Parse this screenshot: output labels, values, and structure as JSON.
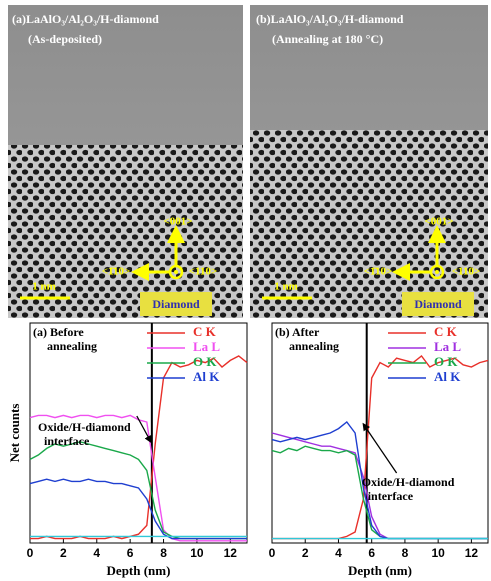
{
  "images": [
    {
      "title": "(a)LaAlO₃/Al₂O₃/H-diamond",
      "subtitle": "(As-deposited)",
      "dir_up": "<001>",
      "dir_left": "<1̄10>",
      "dir_right": "<110>",
      "scale": "1 nm",
      "region": "Diamond"
    },
    {
      "title": "(b)LaAlO₃/Al₂O₃/H-diamond",
      "subtitle": "(Annealing at 180 °C)",
      "dir_up": "<001>",
      "dir_left": "<1̄10>",
      "dir_right": "<110>",
      "scale": "1 nm",
      "region": "Diamond"
    }
  ],
  "chart_data": [
    {
      "type": "line",
      "panel_label": [
        "(a) Before",
        "annealing"
      ],
      "annotation": [
        "Oxide/H-diamond",
        "interface"
      ],
      "xlabel": "Depth (nm)",
      "ylabel": "Net counts",
      "xlim": [
        0,
        13
      ],
      "xticks": [
        0,
        2,
        4,
        6,
        8,
        10,
        12
      ],
      "ylim": [
        0,
        100
      ],
      "vline": 7.3,
      "legend": "upper right",
      "x": [
        0,
        0.5,
        1,
        1.5,
        2,
        2.5,
        3,
        3.5,
        4,
        4.5,
        5,
        5.5,
        6,
        6.5,
        7,
        7.5,
        8,
        8.5,
        9,
        9.5,
        10,
        10.5,
        11,
        11.5,
        12,
        12.5,
        13
      ],
      "series": [
        {
          "name": "C K",
          "color": "#e8302a",
          "values": [
            2,
            2,
            3,
            2,
            2,
            2,
            3,
            2,
            2,
            2,
            3,
            2,
            3,
            4,
            8,
            45,
            75,
            82,
            80,
            81,
            83,
            82,
            84,
            80,
            83,
            85,
            82
          ]
        },
        {
          "name": "La L",
          "color": "#f050f0",
          "values": [
            57,
            58,
            58,
            57,
            58,
            57,
            58,
            58,
            57,
            58,
            58,
            57,
            58,
            56,
            55,
            30,
            6,
            2,
            1,
            1,
            1,
            1,
            1,
            1,
            1,
            1,
            1
          ]
        },
        {
          "name": "O K",
          "color": "#1aa84a",
          "values": [
            38,
            40,
            43,
            45,
            44,
            45,
            46,
            45,
            44,
            43,
            42,
            41,
            40,
            38,
            33,
            15,
            5,
            3,
            2,
            2,
            2,
            2,
            2,
            2,
            2,
            2,
            2
          ]
        },
        {
          "name": "Al K",
          "color": "#1f3fd0",
          "values": [
            27,
            28,
            29,
            28,
            29,
            28,
            28,
            29,
            28,
            28,
            27,
            27,
            26,
            25,
            20,
            10,
            4,
            2,
            2,
            2,
            2,
            2,
            2,
            2,
            2,
            2,
            2
          ]
        },
        {
          "color": "#30c8d8",
          "values": [
            3,
            3,
            3,
            3,
            3,
            3,
            3,
            3,
            3,
            3,
            3,
            3,
            3,
            3,
            3,
            3,
            3,
            3,
            3,
            3,
            3,
            3,
            3,
            3,
            3,
            3,
            3
          ]
        }
      ]
    },
    {
      "type": "line",
      "panel_label": [
        "(b) After",
        "annealing"
      ],
      "annotation": [
        "Oxide/H-diamond",
        "interface"
      ],
      "xlabel": "Depth (nm)",
      "xlim": [
        0,
        13
      ],
      "xticks": [
        0,
        2,
        4,
        6,
        8,
        10,
        12
      ],
      "ylim": [
        0,
        100
      ],
      "vline": 5.7,
      "legend": "upper right",
      "x": [
        0,
        0.5,
        1,
        1.5,
        2,
        2.5,
        3,
        3.5,
        4,
        4.5,
        5,
        5.5,
        6,
        6.5,
        7,
        7.5,
        8,
        8.5,
        9,
        9.5,
        10,
        10.5,
        11,
        11.5,
        12,
        12.5,
        13
      ],
      "series": [
        {
          "name": "C K",
          "color": "#e8302a",
          "values": [
            2,
            2,
            2,
            2,
            2,
            2,
            2,
            2,
            2,
            3,
            5,
            20,
            75,
            82,
            80,
            84,
            83,
            82,
            85,
            80,
            82,
            83,
            84,
            81,
            80,
            82,
            83
          ]
        },
        {
          "name": "La L",
          "color": "#a030e0",
          "values": [
            50,
            49,
            48,
            47,
            46,
            45,
            44,
            44,
            43,
            42,
            41,
            30,
            12,
            4,
            2,
            2,
            2,
            2,
            2,
            2,
            2,
            2,
            2,
            2,
            2,
            2,
            2
          ]
        },
        {
          "name": "O K",
          "color": "#1aa84a",
          "values": [
            42,
            41,
            43,
            42,
            44,
            43,
            42,
            42,
            41,
            42,
            40,
            20,
            6,
            3,
            2,
            2,
            2,
            2,
            2,
            2,
            2,
            2,
            2,
            2,
            2,
            2,
            2
          ]
        },
        {
          "name": "Al K",
          "color": "#1f3fd0",
          "values": [
            47,
            46,
            47,
            48,
            47,
            48,
            49,
            50,
            52,
            55,
            50,
            25,
            8,
            3,
            2,
            2,
            2,
            2,
            2,
            2,
            2,
            2,
            2,
            2,
            2,
            2,
            2
          ]
        },
        {
          "color": "#30c8d8",
          "values": [
            2,
            2,
            2,
            2,
            2,
            2,
            2,
            2,
            2,
            2,
            2,
            2,
            2,
            2,
            2,
            2,
            2,
            2,
            2,
            2,
            2,
            2,
            2,
            2,
            2,
            2,
            2
          ]
        }
      ]
    }
  ]
}
